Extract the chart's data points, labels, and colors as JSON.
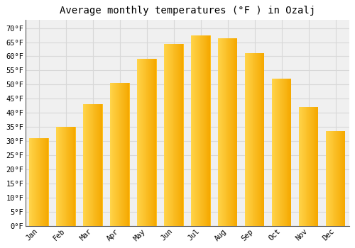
{
  "title": "Average monthly temperatures (°F ) in Ozalj",
  "months": [
    "Jan",
    "Feb",
    "Mar",
    "Apr",
    "May",
    "Jun",
    "Jul",
    "Aug",
    "Sep",
    "Oct",
    "Nov",
    "Dec"
  ],
  "values": [
    31,
    35,
    43,
    50.5,
    59,
    64.5,
    67.5,
    66.5,
    61,
    52,
    42,
    33.5
  ],
  "bar_color_left": "#FFD44A",
  "bar_color_right": "#F5A800",
  "bar_color_mid": "#FFC020",
  "ylim": [
    0,
    73
  ],
  "yticks": [
    0,
    5,
    10,
    15,
    20,
    25,
    30,
    35,
    40,
    45,
    50,
    55,
    60,
    65,
    70
  ],
  "ytick_labels": [
    "0°F",
    "5°F",
    "10°F",
    "15°F",
    "20°F",
    "25°F",
    "30°F",
    "35°F",
    "40°F",
    "45°F",
    "50°F",
    "55°F",
    "60°F",
    "65°F",
    "70°F"
  ],
  "background_color": "#ffffff",
  "plot_bg_color": "#f0f0f0",
  "grid_color": "#d8d8d8",
  "title_fontsize": 10,
  "tick_fontsize": 7.5,
  "font_family": "monospace"
}
